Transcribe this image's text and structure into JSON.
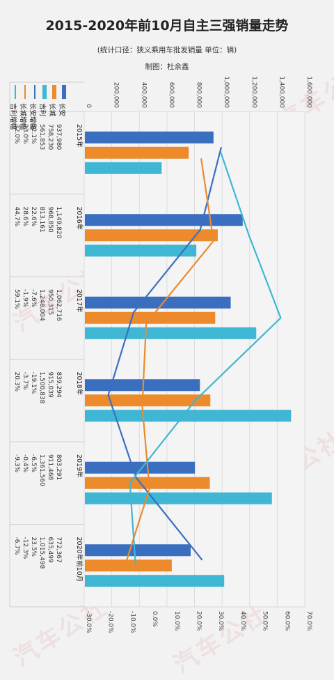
{
  "chart_data": {
    "type": "bar",
    "title": "2015-2020年前10月自主三强销量走势",
    "subtitle": "(统计口径：狭义乘用车批发销量  单位：辆)",
    "author": "制图：杜余鑫",
    "watermark": "汽车公社",
    "categories": [
      "2015年",
      "2016年",
      "2017年",
      "2018年",
      "2019年",
      "2020年前10月"
    ],
    "primary_axis": {
      "ticks": [
        "0",
        "200,000",
        "400,000",
        "600,000",
        "800,000",
        "1,000,000",
        "1,200,000",
        "1,400,000",
        "1,600,000"
      ],
      "range": [
        0,
        1600000
      ]
    },
    "secondary_axis": {
      "ticks": [
        "-30.0%",
        "-20.0%",
        "-10.0%",
        "0.0%",
        "10.0%",
        "20.0%",
        "30.0%",
        "40.0%",
        "50.0%",
        "60.0%",
        "70.0%"
      ],
      "range": [
        -30,
        70
      ]
    },
    "series": [
      {
        "name": "长安",
        "kind": "bar",
        "color": "#3a6fc0",
        "values": [
          937980,
          1149820,
          1062716,
          839294,
          803291,
          772367
        ],
        "labels": [
          "937,980",
          "1,149,820",
          "1,062,716",
          "839,294",
          "803,291",
          "772,367"
        ]
      },
      {
        "name": "长城",
        "kind": "bar",
        "color": "#ed8a2b",
        "values": [
          758230,
          968850,
          950315,
          915039,
          911468,
          635499
        ],
        "labels": [
          "758,230",
          "968,850",
          "950,315",
          "915,039",
          "911,468",
          "635,499"
        ]
      },
      {
        "name": "吉利",
        "kind": "bar",
        "color": "#3fb6d3",
        "values": [
          561853,
          813161,
          1248004,
          1500838,
          1361560,
          1015498
        ],
        "labels": [
          "561,853",
          "813,161",
          "1,248,004",
          "1,500,838",
          "1,361,560",
          "1,015,498"
        ]
      },
      {
        "name": "长安增幅",
        "kind": "line",
        "color": "#3a6fc0",
        "values": [
          32.1,
          22.6,
          -7.6,
          -19.1,
          -6.5,
          23.5
        ],
        "labels": [
          "32.1%",
          "22.6%",
          "-7.6%",
          "-19.1%",
          "-6.5%",
          "23.5%"
        ]
      },
      {
        "name": "长城增幅",
        "kind": "line",
        "color": "#ed8a2b",
        "values": [
          23.0,
          28.6,
          -1.9,
          -3.7,
          -0.4,
          -12.3
        ],
        "labels": [
          "23.0%",
          "28.6%",
          "-1.9%",
          "-3.7%",
          "-0.4%",
          "-12.3%"
        ]
      },
      {
        "name": "吉利增幅",
        "kind": "line",
        "color": "#3fb6d3",
        "values": [
          32.0,
          44.7,
          59.1,
          20.3,
          -9.3,
          -6.7
        ],
        "labels": [
          "32.0%",
          "44.7%",
          "59.1%",
          "20.3%",
          "-9.3%",
          "-6.7%"
        ]
      }
    ]
  }
}
